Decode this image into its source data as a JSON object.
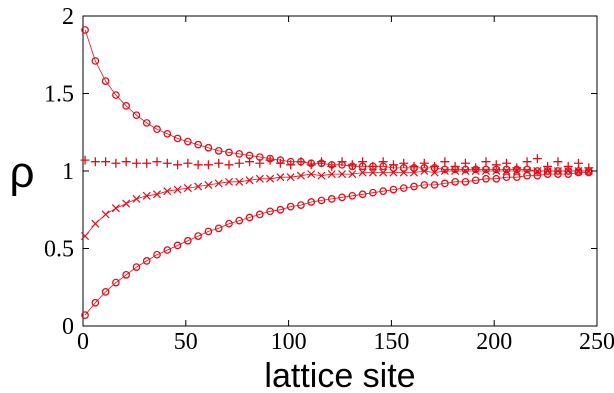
{
  "chart_data": {
    "type": "scatter",
    "title": "",
    "xlabel": "lattice site",
    "ylabel": "ρ",
    "xlim": [
      0,
      250
    ],
    "ylim": [
      0,
      2
    ],
    "xticks": [
      "0",
      "50",
      "100",
      "150",
      "200",
      "250"
    ],
    "yticks": [
      "0",
      "0.5",
      "1",
      "1.5",
      "2"
    ],
    "grid": false,
    "legend": "none",
    "color": "#e0101a",
    "series": [
      {
        "marker": "circle",
        "curve": true,
        "x": [
          1,
          6,
          11,
          16,
          21,
          26,
          31,
          36,
          41,
          46,
          51,
          56,
          61,
          66,
          71,
          76,
          81,
          86,
          91,
          96,
          101,
          106,
          111,
          116,
          121,
          126,
          131,
          136,
          141,
          146,
          151,
          156,
          161,
          166,
          171,
          176,
          181,
          186,
          191,
          196,
          201,
          206,
          211,
          216,
          221,
          226,
          231,
          236,
          241,
          246
        ],
        "values": [
          1.91,
          1.71,
          1.58,
          1.49,
          1.42,
          1.36,
          1.31,
          1.27,
          1.24,
          1.21,
          1.19,
          1.17,
          1.15,
          1.13,
          1.12,
          1.11,
          1.1,
          1.09,
          1.08,
          1.07,
          1.06,
          1.06,
          1.05,
          1.05,
          1.04,
          1.04,
          1.03,
          1.03,
          1.03,
          1.03,
          1.02,
          1.02,
          1.02,
          1.02,
          1.02,
          1.01,
          1.01,
          1.01,
          1.01,
          1.01,
          1.01,
          1.01,
          1.01,
          1.01,
          1.0,
          1.0,
          1.0,
          1.0,
          1.0,
          1.0
        ]
      },
      {
        "marker": "plus",
        "curve": false,
        "x": [
          1,
          6,
          11,
          16,
          21,
          26,
          31,
          36,
          41,
          46,
          51,
          56,
          61,
          66,
          71,
          76,
          81,
          86,
          91,
          96,
          101,
          106,
          111,
          116,
          121,
          126,
          131,
          136,
          141,
          146,
          151,
          156,
          161,
          166,
          171,
          176,
          181,
          186,
          191,
          196,
          201,
          206,
          211,
          216,
          221,
          226,
          231,
          236,
          241,
          246
        ],
        "values": [
          1.07,
          1.06,
          1.06,
          1.05,
          1.06,
          1.05,
          1.05,
          1.06,
          1.05,
          1.04,
          1.05,
          1.04,
          1.04,
          1.05,
          1.04,
          1.05,
          1.06,
          1.05,
          1.07,
          1.05,
          1.04,
          1.06,
          1.04,
          1.06,
          1.03,
          1.06,
          1.04,
          1.06,
          1.03,
          1.06,
          1.04,
          1.05,
          1.03,
          1.05,
          1.03,
          1.06,
          1.03,
          1.05,
          1.02,
          1.06,
          1.04,
          1.05,
          1.02,
          1.06,
          1.08,
          1.03,
          1.06,
          1.03,
          1.05,
          1.02
        ]
      },
      {
        "marker": "cross",
        "curve": true,
        "x": [
          1,
          6,
          11,
          16,
          21,
          26,
          31,
          36,
          41,
          46,
          51,
          56,
          61,
          66,
          71,
          76,
          81,
          86,
          91,
          96,
          101,
          106,
          111,
          116,
          121,
          126,
          131,
          136,
          141,
          146,
          151,
          156,
          161,
          166,
          171,
          176,
          181,
          186,
          191,
          196,
          201,
          206,
          211,
          216,
          221,
          226,
          231,
          236,
          241,
          246
        ],
        "values": [
          0.58,
          0.66,
          0.72,
          0.76,
          0.79,
          0.82,
          0.84,
          0.85,
          0.87,
          0.88,
          0.89,
          0.9,
          0.91,
          0.92,
          0.93,
          0.93,
          0.94,
          0.95,
          0.95,
          0.96,
          0.96,
          0.97,
          0.98,
          0.97,
          0.98,
          0.98,
          0.98,
          0.99,
          0.99,
          0.99,
          0.99,
          0.99,
          0.99,
          1.0,
          0.99,
          1.0,
          1.0,
          1.0,
          1.0,
          1.0,
          1.0,
          1.0,
          1.0,
          1.0,
          1.0,
          1.0,
          1.0,
          1.0,
          1.0,
          1.0
        ]
      },
      {
        "marker": "circle",
        "curve": true,
        "x": [
          1,
          6,
          11,
          16,
          21,
          26,
          31,
          36,
          41,
          46,
          51,
          56,
          61,
          66,
          71,
          76,
          81,
          86,
          91,
          96,
          101,
          106,
          111,
          116,
          121,
          126,
          131,
          136,
          141,
          146,
          151,
          156,
          161,
          166,
          171,
          176,
          181,
          186,
          191,
          196,
          201,
          206,
          211,
          216,
          221,
          226,
          231,
          236,
          241,
          246
        ],
        "values": [
          0.07,
          0.15,
          0.22,
          0.28,
          0.33,
          0.38,
          0.42,
          0.46,
          0.49,
          0.52,
          0.55,
          0.58,
          0.61,
          0.63,
          0.66,
          0.68,
          0.7,
          0.72,
          0.74,
          0.75,
          0.77,
          0.78,
          0.8,
          0.81,
          0.82,
          0.83,
          0.84,
          0.85,
          0.86,
          0.87,
          0.88,
          0.89,
          0.9,
          0.91,
          0.91,
          0.92,
          0.93,
          0.93,
          0.94,
          0.95,
          0.95,
          0.96,
          0.96,
          0.97,
          0.97,
          0.98,
          0.98,
          0.98,
          0.99,
          0.99
        ]
      }
    ]
  }
}
